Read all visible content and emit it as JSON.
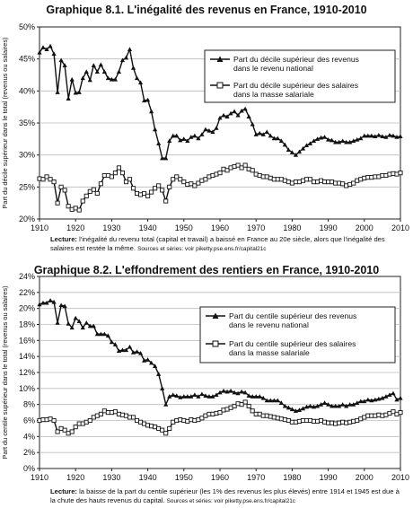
{
  "chart_data": [
    {
      "type": "line",
      "title": "Graphique 8.1. L'inégalité des revenus en France, 1910-2010",
      "ylabel": "Part du décile supérieur dans le total (revenus ou salaires)",
      "xlim": [
        1910,
        2010
      ],
      "ylim": [
        0.2,
        0.5
      ],
      "x_ticks": [
        "1910",
        "1920",
        "1930",
        "1940",
        "1950",
        "1960",
        "1970",
        "1980",
        "1990",
        "2000",
        "2010"
      ],
      "y_ticks": [
        "20%",
        "25%",
        "30%",
        "35%",
        "40%",
        "45%",
        "50%"
      ],
      "grid": true,
      "legend_position": "right",
      "note_lead": "Lecture:",
      "note_text": "l'inégalité du revenu total (capital et travail) a baissé en France au 20e siècle, alors que l'inégalité des salaires est restée la même.",
      "note_source": "Sources et séries: voir piketty.pse.ens.fr/capital21c",
      "series": [
        {
          "name": "Part du décile supérieur des revenus dans le revenu national",
          "marker": "filled-triangle",
          "x": [
            1910,
            1911,
            1912,
            1913,
            1914,
            1915,
            1916,
            1917,
            1918,
            1919,
            1920,
            1921,
            1922,
            1923,
            1924,
            1925,
            1926,
            1927,
            1928,
            1929,
            1930,
            1931,
            1932,
            1933,
            1934,
            1935,
            1936,
            1937,
            1938,
            1939,
            1940,
            1941,
            1942,
            1943,
            1944,
            1945,
            1946,
            1947,
            1948,
            1949,
            1950,
            1951,
            1952,
            1953,
            1954,
            1955,
            1956,
            1957,
            1958,
            1959,
            1960,
            1961,
            1962,
            1963,
            1964,
            1965,
            1966,
            1967,
            1968,
            1969,
            1970,
            1971,
            1972,
            1973,
            1974,
            1975,
            1976,
            1977,
            1978,
            1979,
            1980,
            1981,
            1982,
            1983,
            1984,
            1985,
            1986,
            1987,
            1988,
            1989,
            1990,
            1991,
            1992,
            1993,
            1994,
            1995,
            1996,
            1997,
            1998,
            1999,
            2000,
            2001,
            2002,
            2003,
            2004,
            2005,
            2006,
            2007,
            2008,
            2009,
            2010
          ],
          "y": [
            0.46,
            0.468,
            0.465,
            0.47,
            0.458,
            0.398,
            0.448,
            0.44,
            0.388,
            0.418,
            0.397,
            0.398,
            0.42,
            0.43,
            0.417,
            0.44,
            0.43,
            0.441,
            0.43,
            0.42,
            0.418,
            0.418,
            0.43,
            0.448,
            0.452,
            0.465,
            0.436,
            0.42,
            0.413,
            0.385,
            0.386,
            0.368,
            0.34,
            0.318,
            0.295,
            0.295,
            0.322,
            0.33,
            0.33,
            0.323,
            0.325,
            0.322,
            0.328,
            0.33,
            0.326,
            0.332,
            0.34,
            0.338,
            0.336,
            0.342,
            0.358,
            0.362,
            0.36,
            0.365,
            0.368,
            0.362,
            0.369,
            0.372,
            0.36,
            0.348,
            0.332,
            0.334,
            0.332,
            0.336,
            0.33,
            0.326,
            0.326,
            0.322,
            0.316,
            0.308,
            0.304,
            0.3,
            0.305,
            0.31,
            0.315,
            0.318,
            0.322,
            0.325,
            0.327,
            0.328,
            0.324,
            0.323,
            0.32,
            0.32,
            0.322,
            0.32,
            0.32,
            0.322,
            0.324,
            0.326,
            0.33,
            0.33,
            0.33,
            0.329,
            0.331,
            0.329,
            0.328,
            0.331,
            0.33,
            0.328,
            0.329
          ]
        },
        {
          "name": "Part du décile supérieur des salaires dans la masse salariale",
          "marker": "open-square",
          "x": [
            1910,
            1911,
            1912,
            1913,
            1914,
            1915,
            1916,
            1917,
            1918,
            1919,
            1920,
            1921,
            1922,
            1923,
            1924,
            1925,
            1926,
            1927,
            1928,
            1929,
            1930,
            1931,
            1932,
            1933,
            1934,
            1935,
            1936,
            1937,
            1938,
            1939,
            1940,
            1941,
            1942,
            1943,
            1944,
            1945,
            1946,
            1947,
            1948,
            1949,
            1950,
            1951,
            1952,
            1953,
            1954,
            1955,
            1956,
            1957,
            1958,
            1959,
            1960,
            1961,
            1962,
            1963,
            1964,
            1965,
            1966,
            1967,
            1968,
            1969,
            1970,
            1971,
            1972,
            1973,
            1974,
            1975,
            1976,
            1977,
            1978,
            1979,
            1980,
            1981,
            1982,
            1983,
            1984,
            1985,
            1986,
            1987,
            1988,
            1989,
            1990,
            1991,
            1992,
            1993,
            1994,
            1995,
            1996,
            1997,
            1998,
            1999,
            2000,
            2001,
            2002,
            2003,
            2004,
            2005,
            2006,
            2007,
            2008,
            2009,
            2010
          ],
          "y": [
            0.263,
            0.262,
            0.266,
            0.262,
            0.258,
            0.225,
            0.25,
            0.245,
            0.22,
            0.215,
            0.217,
            0.214,
            0.228,
            0.236,
            0.243,
            0.246,
            0.24,
            0.255,
            0.268,
            0.268,
            0.266,
            0.272,
            0.28,
            0.272,
            0.258,
            0.262,
            0.248,
            0.24,
            0.238,
            0.24,
            0.236,
            0.242,
            0.248,
            0.252,
            0.245,
            0.228,
            0.25,
            0.262,
            0.266,
            0.262,
            0.258,
            0.254,
            0.255,
            0.252,
            0.256,
            0.26,
            0.262,
            0.266,
            0.268,
            0.27,
            0.272,
            0.278,
            0.276,
            0.28,
            0.282,
            0.284,
            0.28,
            0.284,
            0.278,
            0.276,
            0.27,
            0.268,
            0.266,
            0.266,
            0.264,
            0.262,
            0.262,
            0.262,
            0.26,
            0.258,
            0.256,
            0.258,
            0.258,
            0.26,
            0.262,
            0.262,
            0.258,
            0.258,
            0.26,
            0.258,
            0.258,
            0.258,
            0.256,
            0.256,
            0.255,
            0.252,
            0.254,
            0.256,
            0.26,
            0.262,
            0.264,
            0.265,
            0.265,
            0.266,
            0.266,
            0.268,
            0.268,
            0.27,
            0.271,
            0.27,
            0.272
          ]
        }
      ]
    },
    {
      "type": "line",
      "title": "Graphique 8.2. L'effondrement des rentiers en France, 1910-2010",
      "ylabel": "Part du centile supérieur dans le total (revenus ou salaires)",
      "xlim": [
        1910,
        2010
      ],
      "ylim": [
        0.0,
        0.24
      ],
      "x_ticks": [
        "1910",
        "1920",
        "1930",
        "1940",
        "1950",
        "1960",
        "1970",
        "1980",
        "1990",
        "2000",
        "2010"
      ],
      "y_ticks": [
        "0%",
        "2%",
        "4%",
        "6%",
        "8%",
        "10%",
        "12%",
        "14%",
        "16%",
        "18%",
        "20%",
        "22%",
        "24%"
      ],
      "grid": true,
      "legend_position": "right",
      "note_lead": "Lecture:",
      "note_text": "la baisse de la part du centile supérieur (les 1% des revenus les plus élevés) entre 1914 et 1945 est due à la chute des hauts revenus du capital.",
      "note_source": "Sources et séries: voir piketty.pse.ens.fr/capital21c",
      "series": [
        {
          "name": "Part du centile supérieur des revenus dans le revenu national",
          "marker": "filled-triangle",
          "x": [
            1910,
            1911,
            1912,
            1913,
            1914,
            1915,
            1916,
            1917,
            1918,
            1919,
            1920,
            1921,
            1922,
            1923,
            1924,
            1925,
            1926,
            1927,
            1928,
            1929,
            1930,
            1931,
            1932,
            1933,
            1934,
            1935,
            1936,
            1937,
            1938,
            1939,
            1940,
            1941,
            1942,
            1943,
            1944,
            1945,
            1946,
            1947,
            1948,
            1949,
            1950,
            1951,
            1952,
            1953,
            1954,
            1955,
            1956,
            1957,
            1958,
            1959,
            1960,
            1961,
            1962,
            1963,
            1964,
            1965,
            1966,
            1967,
            1968,
            1969,
            1970,
            1971,
            1972,
            1973,
            1974,
            1975,
            1976,
            1977,
            1978,
            1979,
            1980,
            1981,
            1982,
            1983,
            1984,
            1985,
            1986,
            1987,
            1988,
            1989,
            1990,
            1991,
            1992,
            1993,
            1994,
            1995,
            1996,
            1997,
            1998,
            1999,
            2000,
            2001,
            2002,
            2003,
            2004,
            2005,
            2006,
            2007,
            2008,
            2009,
            2010
          ],
          "y": [
            0.205,
            0.207,
            0.207,
            0.21,
            0.208,
            0.182,
            0.204,
            0.203,
            0.181,
            0.176,
            0.188,
            0.184,
            0.176,
            0.182,
            0.178,
            0.178,
            0.168,
            0.168,
            0.168,
            0.166,
            0.158,
            0.155,
            0.147,
            0.148,
            0.148,
            0.152,
            0.145,
            0.146,
            0.144,
            0.135,
            0.136,
            0.132,
            0.128,
            0.118,
            0.1,
            0.08,
            0.09,
            0.092,
            0.091,
            0.089,
            0.09,
            0.09,
            0.09,
            0.092,
            0.09,
            0.093,
            0.091,
            0.09,
            0.09,
            0.092,
            0.095,
            0.097,
            0.096,
            0.097,
            0.095,
            0.094,
            0.096,
            0.095,
            0.091,
            0.09,
            0.09,
            0.09,
            0.088,
            0.085,
            0.085,
            0.085,
            0.085,
            0.082,
            0.078,
            0.076,
            0.074,
            0.072,
            0.073,
            0.075,
            0.077,
            0.078,
            0.077,
            0.078,
            0.08,
            0.082,
            0.08,
            0.078,
            0.078,
            0.078,
            0.08,
            0.078,
            0.08,
            0.08,
            0.082,
            0.084,
            0.084,
            0.086,
            0.085,
            0.086,
            0.087,
            0.088,
            0.09,
            0.092,
            0.094,
            0.086,
            0.088
          ]
        },
        {
          "name": "Part du centile supérieur des salaires dans la masse salariale",
          "marker": "open-square",
          "x": [
            1910,
            1911,
            1912,
            1913,
            1914,
            1915,
            1916,
            1917,
            1918,
            1919,
            1920,
            1921,
            1922,
            1923,
            1924,
            1925,
            1926,
            1927,
            1928,
            1929,
            1930,
            1931,
            1932,
            1933,
            1934,
            1935,
            1936,
            1937,
            1938,
            1939,
            1940,
            1941,
            1942,
            1943,
            1944,
            1945,
            1946,
            1947,
            1948,
            1949,
            1950,
            1951,
            1952,
            1953,
            1954,
            1955,
            1956,
            1957,
            1958,
            1959,
            1960,
            1961,
            1962,
            1963,
            1964,
            1965,
            1966,
            1967,
            1968,
            1969,
            1970,
            1971,
            1972,
            1973,
            1974,
            1975,
            1976,
            1977,
            1978,
            1979,
            1980,
            1981,
            1982,
            1983,
            1984,
            1985,
            1986,
            1987,
            1988,
            1989,
            1990,
            1991,
            1992,
            1993,
            1994,
            1995,
            1996,
            1997,
            1998,
            1999,
            2000,
            2001,
            2002,
            2003,
            2004,
            2005,
            2006,
            2007,
            2008,
            2009,
            2010
          ],
          "y": [
            0.06,
            0.061,
            0.061,
            0.062,
            0.06,
            0.046,
            0.05,
            0.048,
            0.044,
            0.046,
            0.052,
            0.056,
            0.056,
            0.058,
            0.06,
            0.064,
            0.066,
            0.068,
            0.072,
            0.07,
            0.07,
            0.071,
            0.068,
            0.067,
            0.066,
            0.064,
            0.064,
            0.06,
            0.058,
            0.056,
            0.054,
            0.053,
            0.052,
            0.05,
            0.048,
            0.044,
            0.05,
            0.058,
            0.06,
            0.061,
            0.06,
            0.059,
            0.061,
            0.06,
            0.061,
            0.063,
            0.066,
            0.068,
            0.068,
            0.069,
            0.07,
            0.073,
            0.074,
            0.076,
            0.078,
            0.081,
            0.08,
            0.083,
            0.078,
            0.072,
            0.068,
            0.068,
            0.066,
            0.066,
            0.065,
            0.064,
            0.063,
            0.062,
            0.061,
            0.06,
            0.058,
            0.058,
            0.059,
            0.06,
            0.06,
            0.06,
            0.059,
            0.059,
            0.06,
            0.058,
            0.057,
            0.057,
            0.056,
            0.057,
            0.058,
            0.057,
            0.058,
            0.059,
            0.06,
            0.062,
            0.064,
            0.066,
            0.066,
            0.066,
            0.067,
            0.066,
            0.067,
            0.069,
            0.071,
            0.068,
            0.07
          ]
        }
      ]
    }
  ]
}
